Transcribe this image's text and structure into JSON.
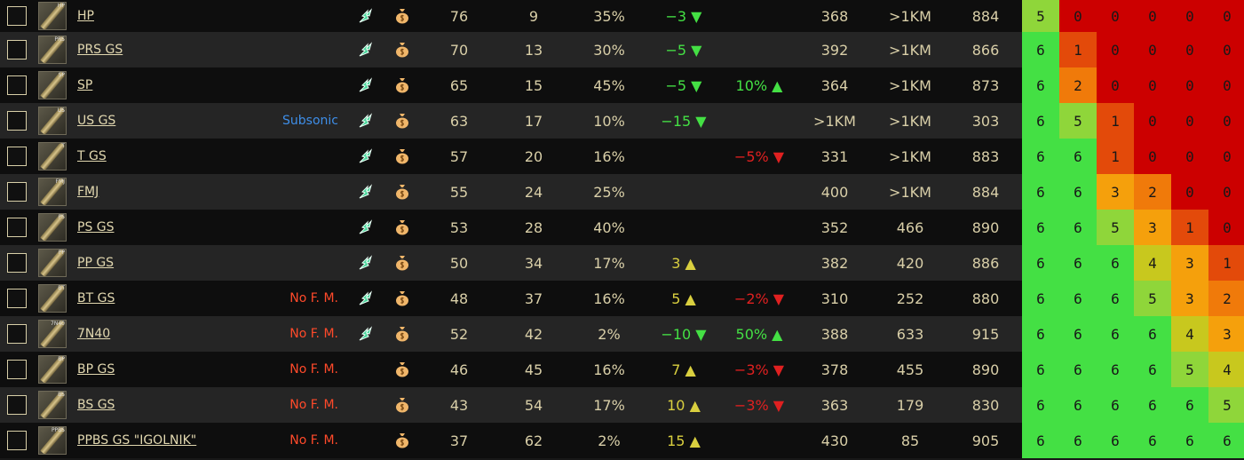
{
  "colors": {
    "armor_levels": {
      "0": "#cc0000",
      "1": "#e34a0a",
      "2": "#f07a0a",
      "3": "#f5a00c",
      "4": "#c8c81e",
      "5": "#8fd63a",
      "6": "#44e044"
    }
  },
  "rows": [
    {
      "name": "HP",
      "tag": "HP",
      "note": "",
      "note_type": "",
      "trader": "leaf-icon",
      "money": "money-bag-icon",
      "damage": "76",
      "penetration": "9",
      "frag": "35%",
      "accuracy": "−3",
      "accuracy_dir": "down",
      "accuracy_color": "green",
      "recoil": "",
      "recoil_dir": "",
      "recoil_color": "",
      "speed": "368",
      "range": ">1KM",
      "velocity": "884",
      "armor": [
        "5",
        "0",
        "0",
        "0",
        "0",
        "0"
      ]
    },
    {
      "name": "PRS GS",
      "tag": "PRS",
      "note": "",
      "note_type": "",
      "trader": "leaf-icon",
      "money": "money-bag-icon",
      "damage": "70",
      "penetration": "13",
      "frag": "30%",
      "accuracy": "−5",
      "accuracy_dir": "down",
      "accuracy_color": "green",
      "recoil": "",
      "recoil_dir": "",
      "recoil_color": "",
      "speed": "392",
      "range": ">1KM",
      "velocity": "866",
      "armor": [
        "6",
        "1",
        "0",
        "0",
        "0",
        "0"
      ]
    },
    {
      "name": "SP",
      "tag": "SP",
      "note": "",
      "note_type": "",
      "trader": "leaf-icon",
      "money": "money-bag-icon",
      "damage": "65",
      "penetration": "15",
      "frag": "45%",
      "accuracy": "−5",
      "accuracy_dir": "down",
      "accuracy_color": "green",
      "recoil": "10%",
      "recoil_dir": "up",
      "recoil_color": "green",
      "speed": "364",
      "range": ">1KM",
      "velocity": "873",
      "armor": [
        "6",
        "2",
        "0",
        "0",
        "0",
        "0"
      ]
    },
    {
      "name": "US GS",
      "tag": "US",
      "note": "Subsonic",
      "note_type": "subsonic",
      "trader": "leaf-icon",
      "money": "money-bag-icon",
      "damage": "63",
      "penetration": "17",
      "frag": "10%",
      "accuracy": "−15",
      "accuracy_dir": "down",
      "accuracy_color": "green",
      "recoil": "",
      "recoil_dir": "",
      "recoil_color": "",
      "speed": ">1KM",
      "range": ">1KM",
      "velocity": "303",
      "armor": [
        "6",
        "5",
        "1",
        "0",
        "0",
        "0"
      ]
    },
    {
      "name": "T GS",
      "tag": "T",
      "note": "",
      "note_type": "",
      "trader": "leaf-icon",
      "money": "money-bag-icon",
      "damage": "57",
      "penetration": "20",
      "frag": "16%",
      "accuracy": "",
      "accuracy_dir": "",
      "accuracy_color": "",
      "recoil": "−5%",
      "recoil_dir": "down",
      "recoil_color": "red",
      "speed": "331",
      "range": ">1KM",
      "velocity": "883",
      "armor": [
        "6",
        "6",
        "1",
        "0",
        "0",
        "0"
      ]
    },
    {
      "name": "FMJ",
      "tag": "FMJ",
      "note": "",
      "note_type": "",
      "trader": "leaf-icon",
      "money": "money-bag-icon",
      "damage": "55",
      "penetration": "24",
      "frag": "25%",
      "accuracy": "",
      "accuracy_dir": "",
      "accuracy_color": "",
      "recoil": "",
      "recoil_dir": "",
      "recoil_color": "",
      "speed": "400",
      "range": ">1KM",
      "velocity": "884",
      "armor": [
        "6",
        "6",
        "3",
        "2",
        "0",
        "0"
      ]
    },
    {
      "name": "PS GS",
      "tag": "PS",
      "note": "",
      "note_type": "",
      "trader": "leaf-icon",
      "money": "money-bag-icon",
      "damage": "53",
      "penetration": "28",
      "frag": "40%",
      "accuracy": "",
      "accuracy_dir": "",
      "accuracy_color": "",
      "recoil": "",
      "recoil_dir": "",
      "recoil_color": "",
      "speed": "352",
      "range": "466",
      "velocity": "890",
      "armor": [
        "6",
        "6",
        "5",
        "3",
        "1",
        "0"
      ]
    },
    {
      "name": "PP GS",
      "tag": "PP",
      "note": "",
      "note_type": "",
      "trader": "leaf-icon",
      "money": "money-bag-icon",
      "damage": "50",
      "penetration": "34",
      "frag": "17%",
      "accuracy": "3",
      "accuracy_dir": "up",
      "accuracy_color": "yellow",
      "recoil": "",
      "recoil_dir": "",
      "recoil_color": "",
      "speed": "382",
      "range": "420",
      "velocity": "886",
      "armor": [
        "6",
        "6",
        "6",
        "4",
        "3",
        "1"
      ]
    },
    {
      "name": "BT GS",
      "tag": "BT",
      "note": "No F. M.",
      "note_type": "nofm",
      "trader": "leaf-icon",
      "money": "money-bag-icon",
      "damage": "48",
      "penetration": "37",
      "frag": "16%",
      "accuracy": "5",
      "accuracy_dir": "up",
      "accuracy_color": "yellow",
      "recoil": "−2%",
      "recoil_dir": "down",
      "recoil_color": "red",
      "speed": "310",
      "range": "252",
      "velocity": "880",
      "armor": [
        "6",
        "6",
        "6",
        "5",
        "3",
        "2"
      ]
    },
    {
      "name": "7N40",
      "tag": "7N40",
      "note": "No F. M.",
      "note_type": "nofm",
      "trader": "leaf-icon",
      "money": "money-bag-icon",
      "damage": "52",
      "penetration": "42",
      "frag": "2%",
      "accuracy": "−10",
      "accuracy_dir": "down",
      "accuracy_color": "green",
      "recoil": "50%",
      "recoil_dir": "up",
      "recoil_color": "green",
      "speed": "388",
      "range": "633",
      "velocity": "915",
      "armor": [
        "6",
        "6",
        "6",
        "6",
        "4",
        "3"
      ]
    },
    {
      "name": "BP GS",
      "tag": "BP",
      "note": "No F. M.",
      "note_type": "nofm",
      "trader": "",
      "money": "money-bag-icon",
      "damage": "46",
      "penetration": "45",
      "frag": "16%",
      "accuracy": "7",
      "accuracy_dir": "up",
      "accuracy_color": "yellow",
      "recoil": "−3%",
      "recoil_dir": "down",
      "recoil_color": "red",
      "speed": "378",
      "range": "455",
      "velocity": "890",
      "armor": [
        "6",
        "6",
        "6",
        "6",
        "5",
        "4"
      ]
    },
    {
      "name": "BS GS",
      "tag": "BS",
      "note": "No F. M.",
      "note_type": "nofm",
      "trader": "",
      "money": "money-bag-icon",
      "damage": "43",
      "penetration": "54",
      "frag": "17%",
      "accuracy": "10",
      "accuracy_dir": "up",
      "accuracy_color": "yellow",
      "recoil": "−3%",
      "recoil_dir": "down",
      "recoil_color": "red",
      "speed": "363",
      "range": "179",
      "velocity": "830",
      "armor": [
        "6",
        "6",
        "6",
        "6",
        "6",
        "5"
      ]
    },
    {
      "name": "PPBS GS \"IGOLNIK\"",
      "tag": "PPBS",
      "note": "No F. M.",
      "note_type": "nofm",
      "trader": "",
      "money": "money-bag-icon",
      "damage": "37",
      "penetration": "62",
      "frag": "2%",
      "accuracy": "15",
      "accuracy_dir": "up",
      "accuracy_color": "yellow",
      "recoil": "",
      "recoil_dir": "",
      "recoil_color": "",
      "speed": "430",
      "range": "85",
      "velocity": "905",
      "armor": [
        "6",
        "6",
        "6",
        "6",
        "6",
        "6"
      ]
    }
  ]
}
